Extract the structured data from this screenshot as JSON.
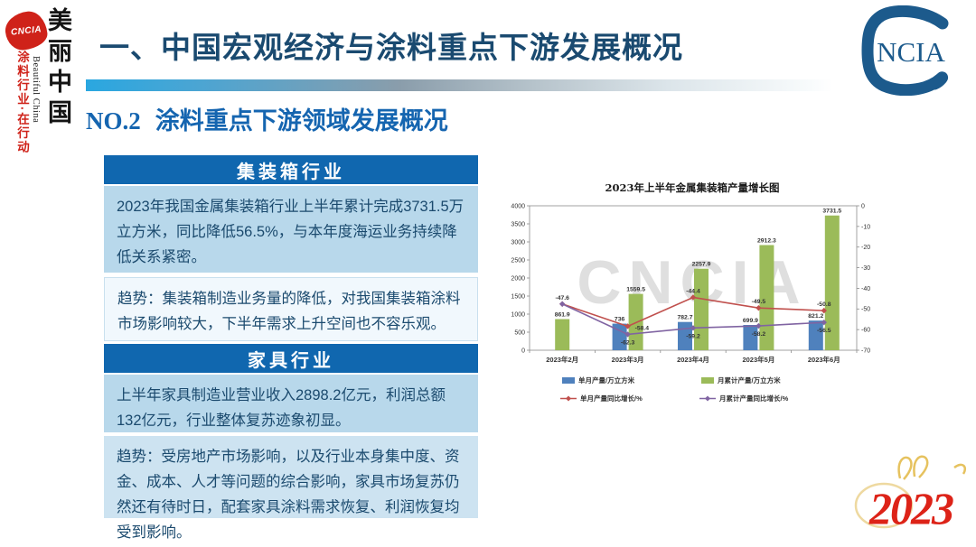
{
  "sidebar": {
    "logo_text": "CNCIA",
    "slogan_main": "美丽中国",
    "slogan_en": "Beautiful China",
    "slogan_sub": "涂料行业·在行动"
  },
  "header": {
    "title": "一、中国宏观经济与涂料重点下游发展概况",
    "section_no": "NO.2",
    "section_title": "涂料重点下游领域发展概况",
    "logo_text": "NCIA"
  },
  "panels": [
    {
      "header": "集装箱行业",
      "body": "2023年我国金属集装箱行业上半年累计完成3731.5万立方米，同比降低56.5%，与本年度海运业务持续降低关系紧密。",
      "trend": "趋势：集装箱制造业务量的降低，对我国集装箱涂料市场影响较大，下半年需求上升空间也不容乐观。"
    },
    {
      "header": "家具行业",
      "body": "上半年家具制造业营业收入2898.2亿元，利润总额132亿元，行业整体复苏迹象初显。",
      "trend": "趋势：受房地产市场影响，以及行业本身集中度、资金、成本、人才等问题的综合影响，家具市场复苏仍然还有待时日，配套家具涂料需求恢复、利润恢复均受到影响。"
    }
  ],
  "chart_data": {
    "type": "bar",
    "title": "2023年上半年金属集装箱产量增长图",
    "categories": [
      "2023年2月",
      "2023年3月",
      "2023年4月",
      "2023年5月",
      "2023年6月"
    ],
    "series": [
      {
        "name": "单月产量/万立方米",
        "type": "bar",
        "axis": "left",
        "color": "#4f81bd",
        "values": [
          null,
          736,
          782.7,
          699.9,
          821.2
        ]
      },
      {
        "name": "月累计产量/万立方米",
        "type": "bar",
        "axis": "left",
        "color": "#9bbb59",
        "values": [
          861.9,
          1559.5,
          2257.9,
          2912.3,
          3731.5
        ]
      },
      {
        "name": "单月产量同比增长/%",
        "type": "line",
        "axis": "right",
        "color": "#c0504d",
        "values": [
          -47.6,
          -58.4,
          -44.4,
          -49.5,
          -50.8
        ]
      },
      {
        "name": "月累计产量同比增长/%",
        "type": "line",
        "axis": "right",
        "color": "#8064a2",
        "values": [
          -47.6,
          -62.3,
          -59.2,
          -58.2,
          -56.5
        ]
      }
    ],
    "left_axis": {
      "min": 0,
      "max": 4000,
      "step": 500
    },
    "right_axis": {
      "min": -70,
      "max": 0,
      "step": 10
    },
    "grid": false,
    "legend_position": "bottom",
    "watermark": "CNCIA"
  },
  "footer": {
    "year_label": "2023"
  },
  "colors": {
    "panel_header_blue": "#1067af",
    "panel_body_bg": "#b8d8eb",
    "trend_bg_light": "#f1f8fd",
    "trend_bg_blue": "#cde3f1",
    "text_dark_blue": "#1b4a6e",
    "page_title_blue": "#1a4a70",
    "section_blue": "#1565b0",
    "brand_red": "#cf2219",
    "logo_blue": "#1c5a8c",
    "year_red": "#dd2318",
    "gold": "#e6c25f"
  }
}
